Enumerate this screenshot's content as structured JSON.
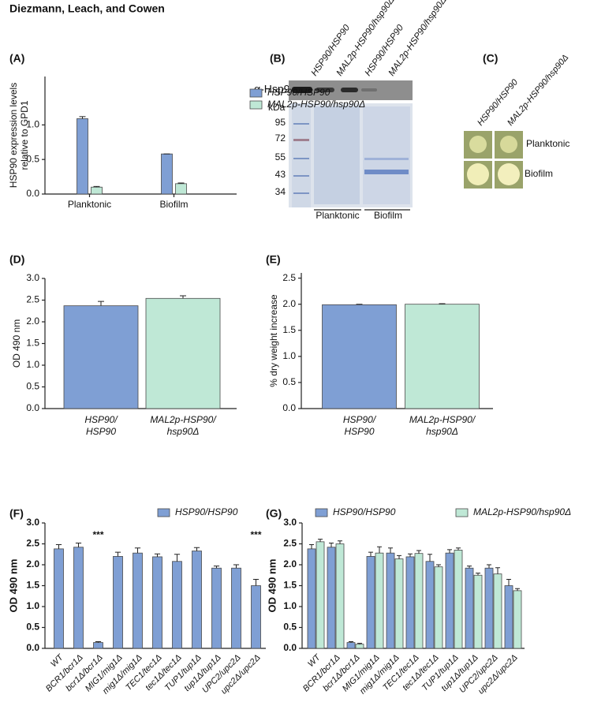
{
  "title": "Diezmann, Leach, and Cowen",
  "chart_data": [
    {
      "type": "bar",
      "panel": "(A)",
      "y_label": [
        "HSP90 expression levels",
        "relative to GPD1"
      ],
      "categories": [
        "Planktonic",
        "Biofilm"
      ],
      "series": [
        {
          "name": "HSP90/HSP90",
          "color": "#7f9fd4",
          "values": [
            1.09,
            0.58
          ],
          "errors": [
            0.03,
            0
          ]
        },
        {
          "name": "MAL2p-HSP90/hsp90Δ",
          "color": "#bfe8d6",
          "values": [
            0.1,
            0.15
          ],
          "errors": [
            0.01,
            0.01
          ]
        }
      ],
      "ylim": [
        0,
        1.7
      ],
      "yticks": [
        {
          "value": 0,
          "label": "0.0"
        },
        0.5,
        {
          "value": 1,
          "label": "1.0"
        }
      ],
      "legend": "upper right"
    },
    {
      "type": "bar",
      "panel": "(D)",
      "y_label": [
        "OD 490 nm"
      ],
      "categories": [
        [
          "HSP90/",
          "HSP90"
        ],
        [
          "MAL2p-HSP90/",
          "hsp90Δ"
        ]
      ],
      "values": [
        2.37,
        2.54
      ],
      "errors": [
        0.1,
        0.06
      ],
      "colors": [
        "#7f9fd4",
        "#bfe8d6"
      ],
      "ylim": [
        0,
        3
      ],
      "yticks": [
        {
          "value": 0,
          "label": "0.0"
        },
        0.5,
        {
          "value": 1,
          "label": "1.0"
        },
        1.5,
        {
          "value": 2,
          "label": "2.0"
        },
        2.5,
        {
          "value": 3,
          "label": "3.0"
        }
      ]
    },
    {
      "type": "bar",
      "panel": "(E)",
      "y_label": [
        "% dry weight increase"
      ],
      "categories": [
        [
          "HSP90/",
          "HSP90"
        ],
        [
          "MAL2p-HSP90/",
          "hsp90Δ"
        ]
      ],
      "values": [
        1.99,
        2.0
      ],
      "errors": [
        0.01,
        0.01
      ],
      "colors": [
        "#7f9fd4",
        "#bfe8d6"
      ],
      "ylim": [
        0,
        2.6
      ],
      "yticks": [
        {
          "value": 0,
          "label": "0.0"
        },
        0.5,
        {
          "value": 1,
          "label": "1.0"
        },
        1.5,
        {
          "value": 2,
          "label": "2.0"
        },
        2.5
      ]
    },
    {
      "type": "bar",
      "panel": "(F)",
      "y_label": [
        "OD 490 nm"
      ],
      "categories": [
        "WT",
        "BCR1/bcr1Δ",
        "bcr1Δ/bcr1Δ",
        "MIG1/mig1Δ",
        "mig1Δ/mig1Δ",
        "TEC1/tec1Δ",
        "tec1Δ/tec1Δ",
        "TUP1/tup1Δ",
        "tup1Δ/tup1Δ",
        "UPC2/upc2Δ",
        "upc2Δ/upc2Δ"
      ],
      "series": [
        {
          "name": "HSP90/HSP90",
          "color": "#7f9fd4",
          "values": [
            2.38,
            2.42,
            0.14,
            2.2,
            2.28,
            2.19,
            2.08,
            2.33,
            1.92,
            1.92,
            1.5
          ],
          "errors": [
            0.1,
            0.1,
            0.02,
            0.1,
            0.12,
            0.07,
            0.17,
            0.08,
            0.05,
            0.08,
            0.15
          ]
        }
      ],
      "annotations": [
        null,
        null,
        "***",
        null,
        null,
        null,
        null,
        null,
        null,
        null,
        "***"
      ],
      "ylim": [
        0,
        3
      ],
      "yticks": [
        {
          "value": 0,
          "label": "0.0"
        },
        0.5,
        {
          "value": 1,
          "label": "1.0"
        },
        1.5,
        {
          "value": 2,
          "label": "2.0"
        },
        2.5,
        {
          "value": 3,
          "label": "3.0"
        }
      ],
      "legend": "top"
    },
    {
      "type": "bar",
      "panel": "(G)",
      "y_label": [
        "OD 490 nm"
      ],
      "categories": [
        "WT",
        "BCR1/bcr1Δ",
        "bcr1Δ/bcr1Δ",
        "MIG1/mig1Δ",
        "mig1Δ/mig1Δ",
        "TEC1/tec1Δ",
        "tec1Δ/tec1Δ",
        "TUP1/tup1Δ",
        "tup1Δ/tup1Δ",
        "UPC2/upc2Δ",
        "upc2Δ/upc2Δ"
      ],
      "series": [
        {
          "name": "HSP90/HSP90",
          "color": "#7f9fd4",
          "values": [
            2.38,
            2.42,
            0.14,
            2.2,
            2.28,
            2.19,
            2.08,
            2.28,
            1.92,
            1.92,
            1.5
          ],
          "errors": [
            0.1,
            0.1,
            0.02,
            0.1,
            0.12,
            0.07,
            0.17,
            0.08,
            0.05,
            0.08,
            0.15
          ]
        },
        {
          "name": "MAL2p-HSP90/hsp90Δ",
          "color": "#bfe8d6",
          "values": [
            2.55,
            2.5,
            0.1,
            2.28,
            2.14,
            2.27,
            1.95,
            2.35,
            1.75,
            1.78,
            1.38
          ],
          "errors": [
            0.06,
            0.07,
            0.02,
            0.15,
            0.08,
            0.07,
            0.05,
            0.05,
            0.05,
            0.15,
            0.05
          ]
        }
      ],
      "ylim": [
        0,
        3
      ],
      "yticks": [
        {
          "value": 0,
          "label": "0.0"
        },
        0.5,
        {
          "value": 1,
          "label": "1.0"
        },
        1.5,
        {
          "value": 2,
          "label": "2.0"
        },
        2.5,
        {
          "value": 3,
          "label": "3.0"
        }
      ],
      "legend": "top"
    }
  ],
  "blot": {
    "panel": "(B)",
    "antibody": "α-Hsp90",
    "lanes": [
      "HSP90/HSP90",
      "MAL2p-HSP90/hsp90Δ",
      "HSP90/HSP90",
      "MAL2p-HSP90/hsp90Δ"
    ],
    "unit": "kDa",
    "markers": [
      95,
      72,
      55,
      43,
      34
    ],
    "groups": [
      "Planktonic",
      "Biofilm"
    ]
  },
  "colonies": {
    "panel": "(C)",
    "lanes": [
      "HSP90/HSP90",
      "MAL2p-HSP90/hsp90Δ"
    ],
    "rows": [
      "Planktonic",
      "Biofilm"
    ]
  }
}
